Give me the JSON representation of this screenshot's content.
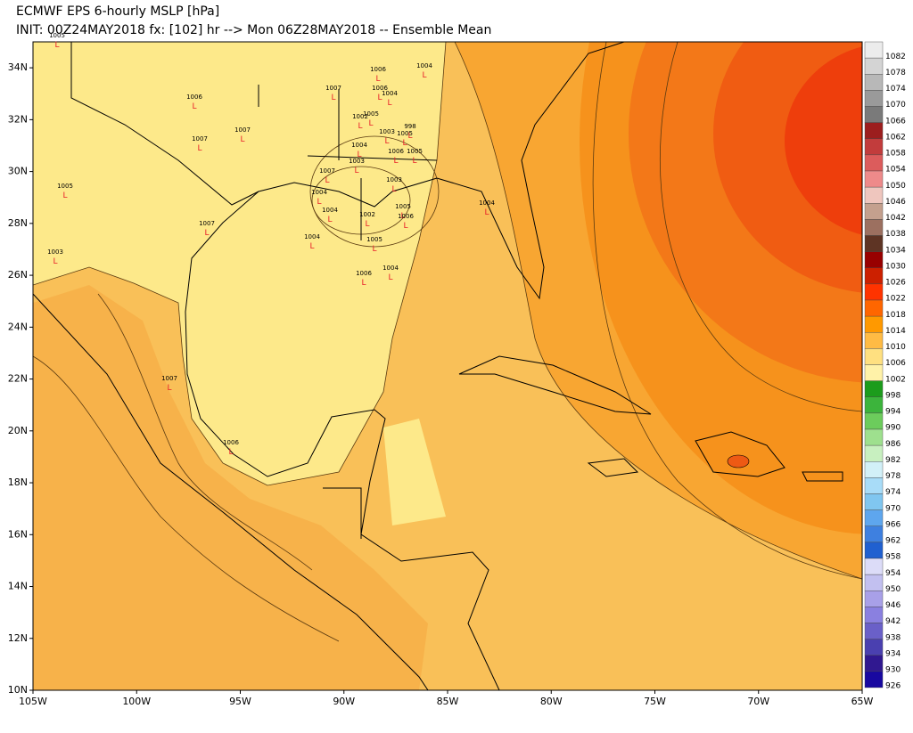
{
  "header": {
    "title": "ECMWF EPS 6-hourly MSLP [hPa]",
    "subtitle": "INIT: 00Z24MAY2018 fx: [102] hr --> Mon 06Z28MAY2018 -- Ensemble Mean"
  },
  "map": {
    "xlim": [
      -105,
      -65
    ],
    "ylim": [
      10,
      35
    ],
    "xticks": [
      {
        "value": -105,
        "label": "105W"
      },
      {
        "value": -100,
        "label": "100W"
      },
      {
        "value": -95,
        "label": "95W"
      },
      {
        "value": -90,
        "label": "90W"
      },
      {
        "value": -85,
        "label": "85W"
      },
      {
        "value": -80,
        "label": "80W"
      },
      {
        "value": -75,
        "label": "75W"
      },
      {
        "value": -70,
        "label": "70W"
      },
      {
        "value": -65,
        "label": "65W"
      }
    ],
    "yticks": [
      {
        "value": 10,
        "label": "10N"
      },
      {
        "value": 12,
        "label": "12N"
      },
      {
        "value": 14,
        "label": "14N"
      },
      {
        "value": 16,
        "label": "16N"
      },
      {
        "value": 18,
        "label": "18N"
      },
      {
        "value": 20,
        "label": "20N"
      },
      {
        "value": 22,
        "label": "22N"
      },
      {
        "value": 24,
        "label": "24N"
      },
      {
        "value": 26,
        "label": "26N"
      },
      {
        "value": 28,
        "label": "28N"
      },
      {
        "value": 30,
        "label": "30N"
      },
      {
        "value": 32,
        "label": "32N"
      },
      {
        "value": 34,
        "label": "34N"
      }
    ],
    "low_marker": "L",
    "lows": [
      1005,
      1006,
      1007,
      1007,
      1007,
      1006,
      1004,
      1006,
      1004,
      1002,
      1005,
      1003,
      998,
      1005,
      1004,
      1006,
      1005,
      1007,
      1003,
      1004,
      1004,
      1002,
      1005,
      1006,
      1003,
      1004,
      1005,
      1004,
      1007,
      1006,
      1004,
      1007,
      1006,
      1003,
      1005
    ]
  },
  "colorbar": {
    "levels": [
      1082,
      1078,
      1074,
      1070,
      1066,
      1062,
      1058,
      1054,
      1050,
      1046,
      1042,
      1038,
      1034,
      1030,
      1026,
      1022,
      1018,
      1014,
      1010,
      1006,
      1002,
      998,
      994,
      990,
      986,
      982,
      978,
      974,
      970,
      966,
      962,
      958,
      954,
      950,
      946,
      942,
      938,
      934,
      930,
      926
    ],
    "colors": [
      "#ececec",
      "#d4d4d4",
      "#b8b8b8",
      "#9a9a9a",
      "#7a7a7a",
      "#9c1e1e",
      "#c23c3c",
      "#dc5c5c",
      "#ee8a8a",
      "#efc6be",
      "#c4a08e",
      "#9c7060",
      "#5e3424",
      "#980000",
      "#cc2000",
      "#ff3300",
      "#ff6600",
      "#ff9900",
      "#ffbb44",
      "#ffe080",
      "#fff2a8",
      "#1c9c1c",
      "#3cb43c",
      "#6ccc5c",
      "#9ee08e",
      "#c8f0c0",
      "#d2f0f8",
      "#a8dcf8",
      "#80c6f0",
      "#5ea6ee",
      "#3e80e0",
      "#2060d0",
      "#dcdcf8",
      "#c2c0f0",
      "#a8a0e8",
      "#8a80e0",
      "#6a60c8",
      "#4a40b0",
      "#301890",
      "#1808a0"
    ]
  }
}
